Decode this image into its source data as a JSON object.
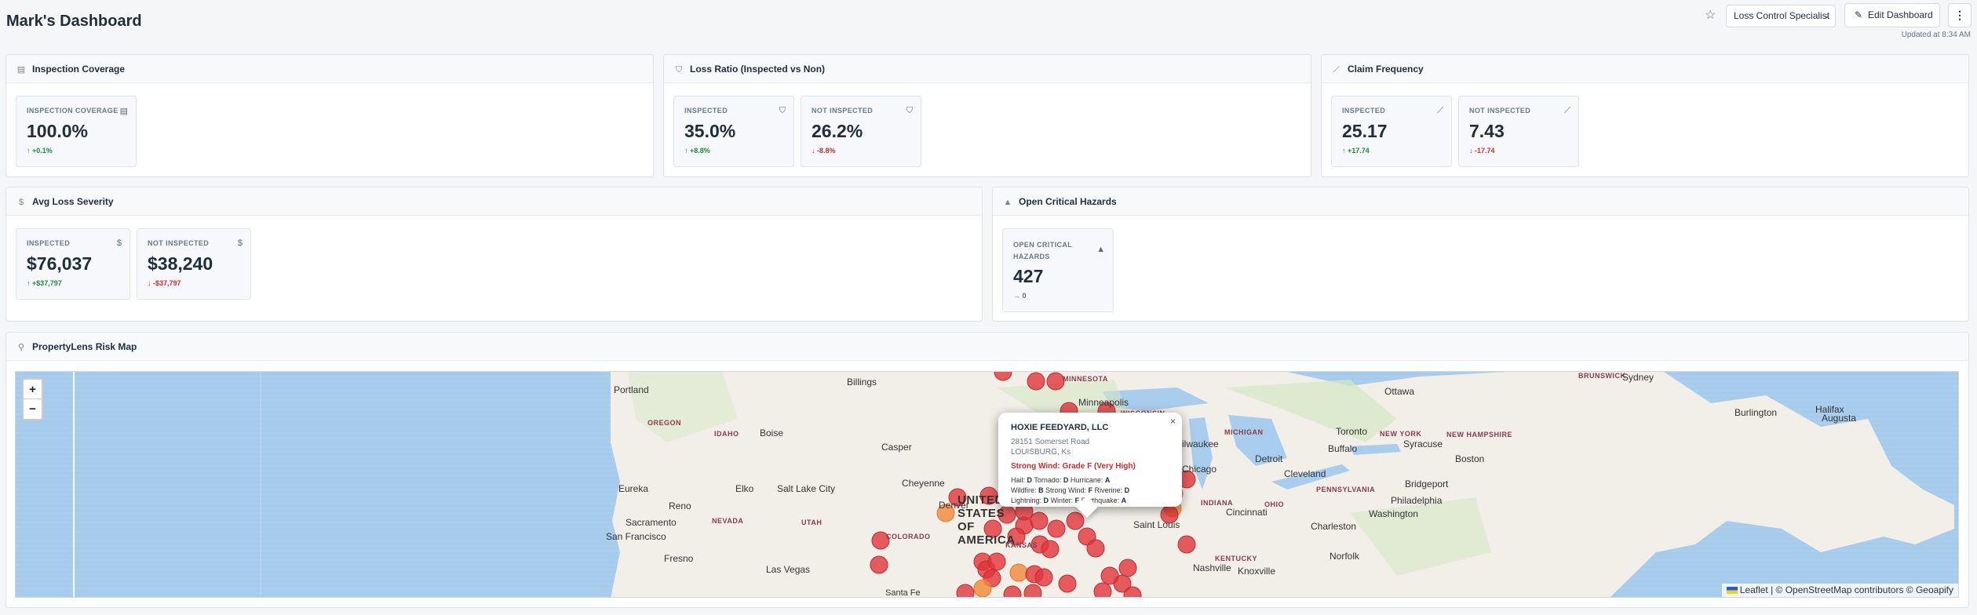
{
  "header": {
    "title": "Mark's Dashboard",
    "role_select": "Loss Control Specialist",
    "edit_label": "Edit Dashboard",
    "more_label": "⋮",
    "updated": "Updated at 8:34 AM"
  },
  "cards": {
    "inspection_coverage": {
      "title": "Inspection Coverage",
      "metrics": [
        {
          "label": "INSPECTION COVERAGE",
          "value": "100.0%",
          "delta": "↑ +0.1%",
          "trend": "up"
        }
      ]
    },
    "loss_ratio": {
      "title": "Loss Ratio (Inspected vs Non)",
      "metrics": [
        {
          "label": "INSPECTED",
          "value": "35.0%",
          "delta": "↑ +8.8%",
          "trend": "up"
        },
        {
          "label": "NOT INSPECTED",
          "value": "26.2%",
          "delta": "↓ -8.8%",
          "trend": "down"
        }
      ]
    },
    "claim_frequency": {
      "title": "Claim Frequency",
      "metrics": [
        {
          "label": "INSPECTED",
          "value": "25.17",
          "delta": "↑ +17.74",
          "trend": "up"
        },
        {
          "label": "NOT INSPECTED",
          "value": "7.43",
          "delta": "↓ -17.74",
          "trend": "down"
        }
      ]
    },
    "avg_loss_severity": {
      "title": "Avg Loss Severity",
      "metrics": [
        {
          "label": "INSPECTED",
          "value": "$76,037",
          "delta": "↑ +$37,797",
          "trend": "up"
        },
        {
          "label": "NOT INSPECTED",
          "value": "$38,240",
          "delta": "↓ -$37,797",
          "trend": "down"
        }
      ]
    },
    "open_critical_hazards": {
      "title": "Open Critical Hazards",
      "metrics": [
        {
          "label_line1": "OPEN CRITICAL",
          "label_line2": "HAZARDS",
          "value": "427",
          "delta": "→ 0",
          "trend": "flat"
        }
      ]
    },
    "risk_map": {
      "title": "PropertyLens Risk Map"
    }
  },
  "map": {
    "zoom_in": "+",
    "zoom_out": "−",
    "popup": {
      "name": "HOXIE FEEDYARD, LLC",
      "address1": "28151 Somerset Road",
      "address2": "LOUISBURG, Ks",
      "grade": "Strong Wind: Grade F (Very High)",
      "line1": [
        [
          "Hail:",
          "D"
        ],
        [
          "Tornado:",
          "D"
        ],
        [
          "Hurricane:",
          "A"
        ]
      ],
      "line2": [
        [
          "Wildfire:",
          "B"
        ],
        [
          "Strong Wind:",
          "F"
        ],
        [
          "Riverine:",
          "D"
        ]
      ],
      "line3": [
        [
          "Lightning:",
          "D"
        ],
        [
          "Winter:",
          "F"
        ],
        [
          "Earthquake:",
          "A"
        ]
      ],
      "close": "×"
    },
    "attribution": {
      "leaflet": "Leaflet",
      "rest": " | © OpenStreetMap contributors © Geoapify"
    },
    "cities": [
      "Billings",
      "Portland",
      "Boise",
      "Casper",
      "Minneapolis",
      "Ottawa",
      "Sydney",
      "Halifax",
      "Burlington",
      "Augusta",
      "Toronto",
      "Syracuse",
      "Boston",
      "Buffalo",
      "Milwaukee",
      "Detroit",
      "Chicago",
      "Cleveland",
      "Bridgeport",
      "Philadelphia",
      "Washington",
      "Cheyenne",
      "Elko",
      "Salt Lake City",
      "Eureka",
      "Reno",
      "Denver",
      "Sacramento",
      "San Francisco",
      "Fresno",
      "Las Vegas",
      "Cincinnati",
      "Charleston",
      "Saint Louis",
      "Norfolk",
      "Nashville",
      "Knoxville",
      "Santa Fe"
    ],
    "states": [
      "OREGON",
      "IDAHO",
      "NEVADA",
      "UTAH",
      "COLORADO",
      "MINNESOTA",
      "WISCONSIN",
      "MICHIGAN",
      "NEW YORK",
      "NEW HAMPSHIRE",
      "PENNSYLVANIA",
      "OHIO",
      "INDIANA",
      "KENTUCKY",
      "KANSAS",
      "BRUNSWICK"
    ],
    "country": "UNITED STATES OF AMERICA",
    "colors": {
      "very_high": "#e0353a",
      "high": "#f2883a",
      "water": "#a9cdec",
      "land": "#f2efe9"
    }
  }
}
